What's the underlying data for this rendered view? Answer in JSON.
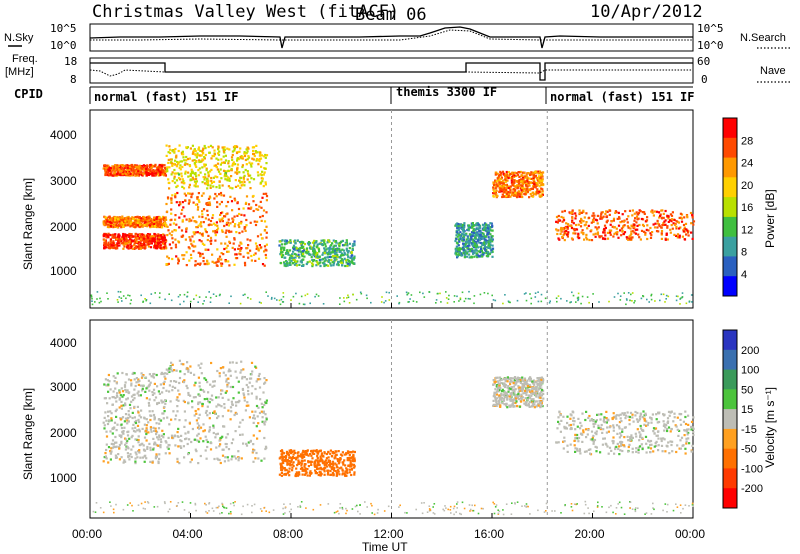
{
  "header": {
    "station": "Christmas Valley West (fitACF)",
    "beam": "Beam 06",
    "date": "10/Apr/2012"
  },
  "status_panel": {
    "left_labels": {
      "nsky": "N.Sky",
      "freq_line1": "Freq.",
      "freq_line2": "[MHz]",
      "cpid": "CPID"
    },
    "right_labels": {
      "nsearch": "N.Search",
      "nave": "Nave"
    },
    "noise_ticks": [
      "10^5",
      "10^0"
    ],
    "freq_ticks": [
      "18",
      "8"
    ],
    "nave_ticks": [
      "60",
      "0"
    ],
    "cpid_segments": [
      {
        "label": "normal (fast) 151 IF",
        "start_hour": 0,
        "end_hour": 12
      },
      {
        "label": "themis 3300 IF",
        "start_hour": 12,
        "end_hour": 18.2
      },
      {
        "label": "normal (fast) 151 IF",
        "start_hour": 18.2,
        "end_hour": 24
      }
    ]
  },
  "chart_data": [
    {
      "type": "heatmap",
      "name": "power",
      "ylabel": "Slant Range [km]",
      "ylim": [
        0,
        4600
      ],
      "y_ticks": [
        "4000",
        "3000",
        "2000",
        "1000"
      ],
      "xlim": [
        "00:00",
        "24:00"
      ],
      "colorbar": {
        "label": "Power [dB]",
        "ticks": [
          "28",
          "24",
          "20",
          "16",
          "12",
          "8",
          "4"
        ],
        "colors": [
          "#ff0000",
          "#ff4a00",
          "#ff9900",
          "#ffd000",
          "#b8e000",
          "#3fbf3f",
          "#3aa0a0",
          "#2a60c0",
          "#0000ff"
        ]
      },
      "bands": [
        {
          "x": [
            0.5,
            3.0
          ],
          "y": [
            1400,
            1750
          ],
          "level": 28
        },
        {
          "x": [
            0.5,
            3.0
          ],
          "y": [
            1900,
            2150
          ],
          "level": 24
        },
        {
          "x": [
            0.5,
            3.0
          ],
          "y": [
            3100,
            3350
          ],
          "level": 26
        },
        {
          "x": [
            3.0,
            7.0
          ],
          "y": [
            1000,
            2700
          ],
          "level": 24
        },
        {
          "x": [
            3.0,
            7.0
          ],
          "y": [
            2800,
            3800
          ],
          "level": 18
        },
        {
          "x": [
            7.5,
            10.5
          ],
          "y": [
            1000,
            1600
          ],
          "level": 10
        },
        {
          "x": [
            14.5,
            16.0
          ],
          "y": [
            1200,
            2000
          ],
          "level": 8
        },
        {
          "x": [
            16.0,
            18.0
          ],
          "y": [
            2600,
            3200
          ],
          "level": 24
        },
        {
          "x": [
            18.5,
            24.0
          ],
          "y": [
            1600,
            2300
          ],
          "level": 26
        }
      ]
    },
    {
      "type": "heatmap",
      "name": "velocity",
      "ylabel": "Slant Range [km]",
      "ylim": [
        0,
        4600
      ],
      "y_ticks": [
        "4000",
        "3000",
        "2000",
        "1000"
      ],
      "xlabel": "Time UT",
      "x_ticks": [
        "00:00",
        "04:00",
        "08:00",
        "12:00",
        "16:00",
        "20:00",
        "00:00"
      ],
      "xlim": [
        "00:00",
        "24:00"
      ],
      "colorbar": {
        "label": "Velocity [m s⁻¹]",
        "ticks": [
          "200",
          "100",
          "50",
          "15",
          "-15",
          "-50",
          "-100",
          "-200"
        ],
        "colors": [
          "#2a35c0",
          "#3a70b0",
          "#3a9a5a",
          "#4cc43c",
          "#bdbdb5",
          "#ffa020",
          "#ff7000",
          "#ff3a00",
          "#ff0000"
        ]
      },
      "bands": [
        {
          "x": [
            0.5,
            3.0
          ],
          "y": [
            1300,
            3400
          ],
          "velocity": 0
        },
        {
          "x": [
            3.0,
            7.0
          ],
          "y": [
            1300,
            3700
          ],
          "velocity": 0
        },
        {
          "x": [
            7.5,
            10.5
          ],
          "y": [
            1000,
            1600
          ],
          "velocity": -80
        },
        {
          "x": [
            16.0,
            18.0
          ],
          "y": [
            2600,
            3300
          ],
          "velocity": 0
        },
        {
          "x": [
            18.5,
            24.0
          ],
          "y": [
            1500,
            2500
          ],
          "velocity": 0
        }
      ]
    }
  ]
}
